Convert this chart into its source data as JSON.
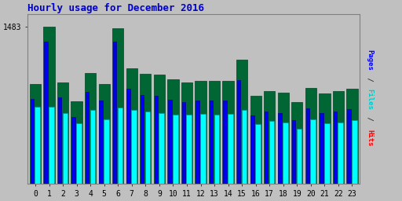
{
  "title": "Hourly usage for December 2016",
  "title_color": "#0000cc",
  "title_fontsize": 9,
  "hours": [
    0,
    1,
    2,
    3,
    4,
    5,
    6,
    7,
    8,
    9,
    10,
    11,
    12,
    13,
    14,
    15,
    16,
    17,
    18,
    19,
    20,
    21,
    22,
    23
  ],
  "hits": [
    940,
    1483,
    960,
    780,
    1050,
    940,
    1470,
    1090,
    1040,
    1030,
    985,
    960,
    975,
    970,
    975,
    1170,
    835,
    875,
    860,
    775,
    905,
    855,
    875,
    895
  ],
  "files": [
    800,
    1340,
    820,
    630,
    870,
    790,
    1340,
    900,
    840,
    835,
    795,
    775,
    790,
    785,
    790,
    980,
    650,
    685,
    670,
    605,
    715,
    670,
    685,
    705
  ],
  "pages": [
    730,
    730,
    670,
    575,
    700,
    610,
    720,
    700,
    680,
    672,
    655,
    655,
    660,
    655,
    660,
    700,
    565,
    592,
    580,
    520,
    608,
    572,
    582,
    600
  ],
  "hits_color": "#006633",
  "files_color": "#0000ee",
  "pages_color": "#00ffff",
  "hits_edge": "#004422",
  "files_edge": "#000099",
  "pages_edge": "#009999",
  "bg_color": "#c0c0c0",
  "tick_fontsize": 7,
  "ytick_val": 1483,
  "pages_label_color": "#0000ff",
  "files_label_color": "#00cccc",
  "hits_label_color": "#ff0000"
}
